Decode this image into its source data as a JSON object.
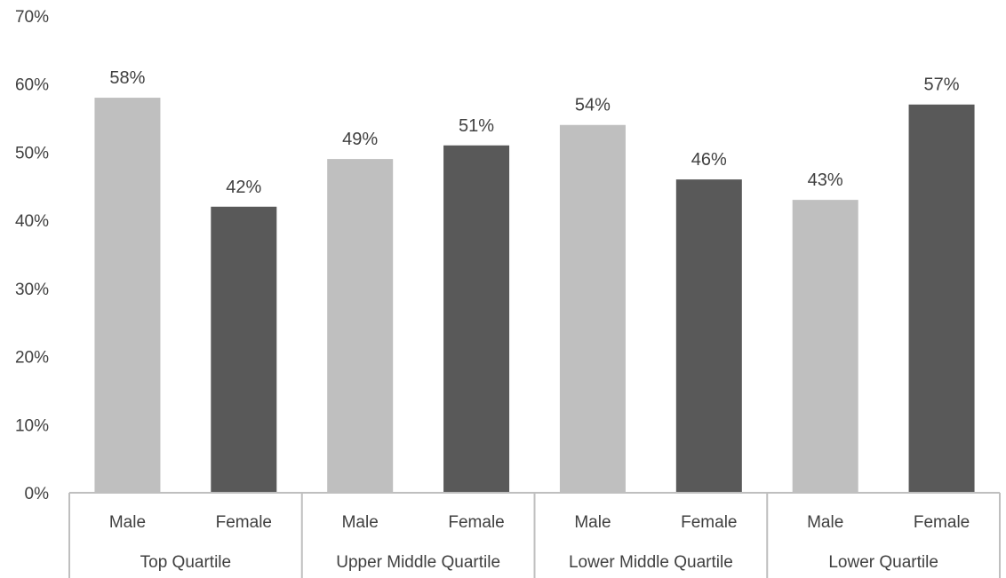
{
  "chart_data": {
    "type": "bar",
    "groups": [
      "Top Quartile",
      "Upper Middle Quartile",
      "Lower Middle Quartile",
      "Lower Quartile"
    ],
    "categories": [
      "Male",
      "Female"
    ],
    "values": [
      [
        58,
        42
      ],
      [
        49,
        51
      ],
      [
        54,
        46
      ],
      [
        43,
        57
      ]
    ],
    "data_labels": [
      [
        "58%",
        "42%"
      ],
      [
        "49%",
        "51%"
      ],
      [
        "54%",
        "46%"
      ],
      [
        "43%",
        "57%"
      ]
    ],
    "ylim": [
      0,
      70
    ],
    "yticks": [
      "0%",
      "10%",
      "20%",
      "30%",
      "40%",
      "50%",
      "60%",
      "70%"
    ],
    "grid": false,
    "colors": {
      "Male": "#bfbfbf",
      "Female": "#595959",
      "axis": "#bfbfbf",
      "text": "#404040"
    }
  }
}
